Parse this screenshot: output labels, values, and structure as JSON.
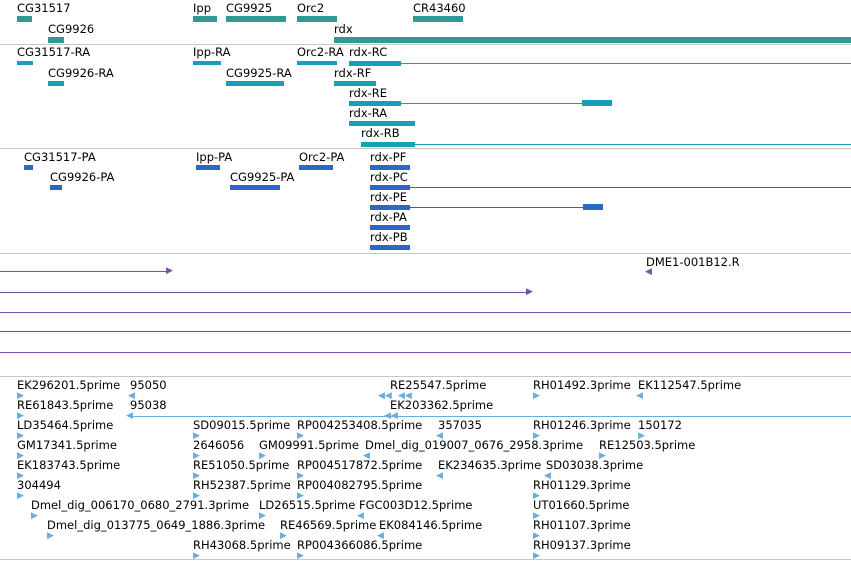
{
  "colors": {
    "gene": "#2f9a94",
    "transcript": "#15a0b8",
    "protein": "#2b66c8",
    "alignment": "#7b4fa8",
    "est": "#6aaedd",
    "separator": "#c8c8c8"
  },
  "tracks": {
    "genes": [
      "CG31517",
      "CG9926",
      "Ipp",
      "CG9925",
      "Orc2",
      "rdx",
      "CR43460"
    ],
    "transcripts": [
      "CG31517-RA",
      "CG9926-RA",
      "Ipp-RA",
      "CG9925-RA",
      "Orc2-RA",
      "rdx-RC",
      "rdx-RF",
      "rdx-RE",
      "rdx-RA",
      "rdx-RB"
    ],
    "proteins": [
      "CG31517-PA",
      "CG9926-PA",
      "Ipp-PA",
      "CG9925-PA",
      "Orc2-PA",
      "rdx-PF",
      "rdx-PC",
      "rdx-PE",
      "rdx-PA",
      "rdx-PB"
    ],
    "alignments": [
      "DME1-001B12.R"
    ],
    "ests": [
      "EK296201.5prime",
      "95050",
      "RE25547.5prime",
      "RH01492.3prime",
      "EK112547.5prime",
      "RE61843.5prime",
      "95038",
      "EK203362.5prime",
      "LD35464.5prime",
      "SD09015.5prime",
      "RP004253408.5prime",
      "357035",
      "RH01246.3prime",
      "150172",
      "GM17341.5prime",
      "2646056",
      "GM09991.5prime",
      "Dmel_dig_019007_0676_2958.3prime",
      "RE12503.5prime",
      "EK183743.5prime",
      "RE51050.5prime",
      "RP004517872.5prime",
      "EK234635.3prime",
      "SD03038.3prime",
      "304494",
      "RH52387.5prime",
      "RP004082795.5prime",
      "RH01129.3prime",
      "Dmel_dig_006170_0680_2791.3prime",
      "LD26515.5prime",
      "FGC003D12.5prime",
      "UT01660.5prime",
      "Dmel_dig_013775_0649_1886.3prime",
      "RE46569.5prime",
      "EK084146.5prime",
      "RH01107.3prime",
      "RH43068.5prime",
      "RP004366086.5prime",
      "RH09137.3prime"
    ]
  }
}
